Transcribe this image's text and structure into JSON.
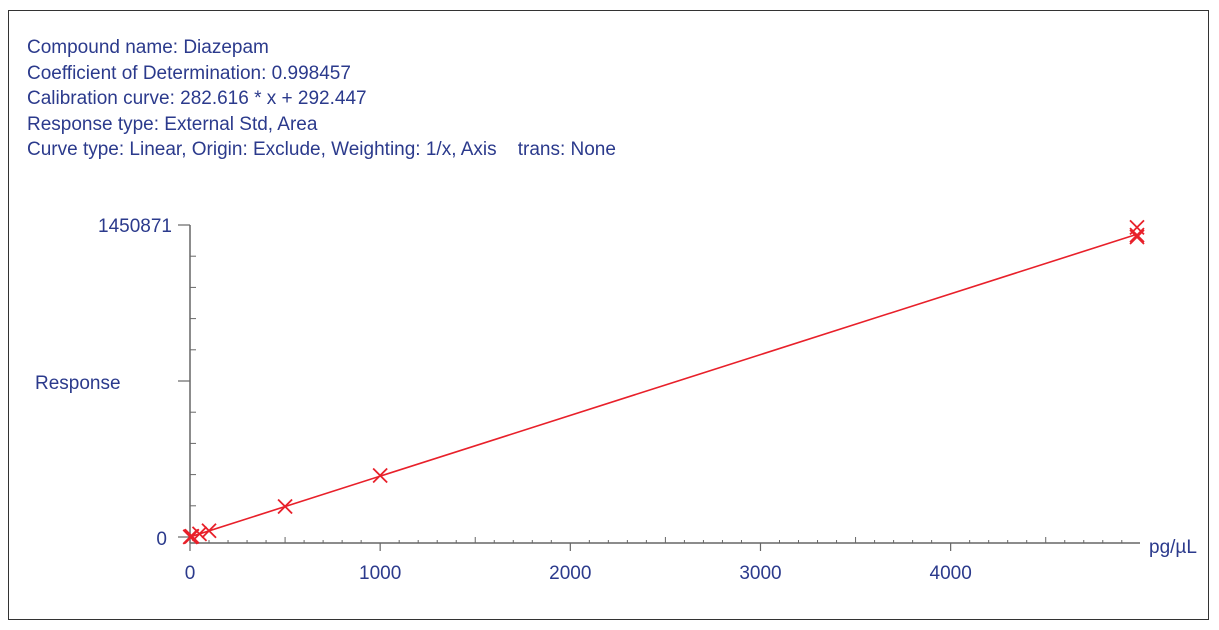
{
  "info_lines": [
    "Compound name: Diazepam",
    "Coefficient of Determination: 0.998457",
    "Calibration curve: 282.616 * x + 292.447",
    "Response type: External Std, Area",
    "Curve type: Linear, Origin: Exclude, Weighting: 1/x, Axis    trans: None"
  ],
  "colors": {
    "text": "#2b3a8c",
    "curve": "#e8202a",
    "axis": "#666666"
  },
  "chart_data": {
    "type": "scatter",
    "title": "",
    "xlabel": "pg/µL",
    "ylabel": "Response",
    "xlim": [
      0,
      4980
    ],
    "ylim": [
      0,
      1450871
    ],
    "x_ticks": [
      0,
      1000,
      2000,
      3000,
      4000
    ],
    "x_tick_labels": [
      "0",
      "1000",
      "2000",
      "3000",
      "4000"
    ],
    "y_ticks": [
      0,
      1450871
    ],
    "y_tick_labels": [
      "0",
      "1450871"
    ],
    "calibration_line": {
      "slope": 282.616,
      "intercept": 292.447,
      "x_range": [
        0,
        4980
      ]
    },
    "series": [
      {
        "x": [
          1,
          5,
          10,
          50,
          100,
          500,
          1000,
          4980,
          4980,
          4980
        ],
        "y": [
          600,
          1700,
          3200,
          14500,
          29000,
          142000,
          286000,
          1440000,
          1404000,
          1395000
        ]
      }
    ]
  }
}
